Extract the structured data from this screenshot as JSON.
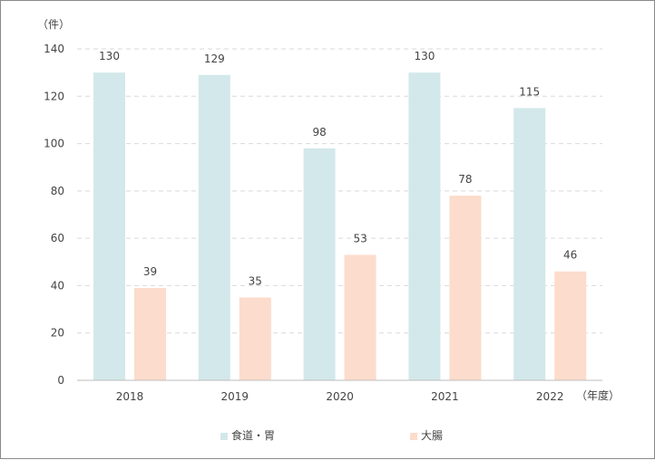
{
  "chart_data": {
    "type": "bar",
    "categories": [
      "2018",
      "2019",
      "2020",
      "2021",
      "2022"
    ],
    "series": [
      {
        "name": "食道・胃",
        "color": "#d3e8ea",
        "values": [
          130,
          129,
          98,
          130,
          115
        ]
      },
      {
        "name": "大腸",
        "color": "#fcdccc",
        "values": [
          39,
          35,
          53,
          78,
          46
        ]
      }
    ],
    "ylabel": "（件）",
    "xunit": "（年度）",
    "ylim": [
      0,
      140
    ],
    "yticks": [
      0,
      20,
      40,
      60,
      80,
      100,
      120,
      140
    ],
    "grid": true,
    "legend_position": "bottom"
  }
}
